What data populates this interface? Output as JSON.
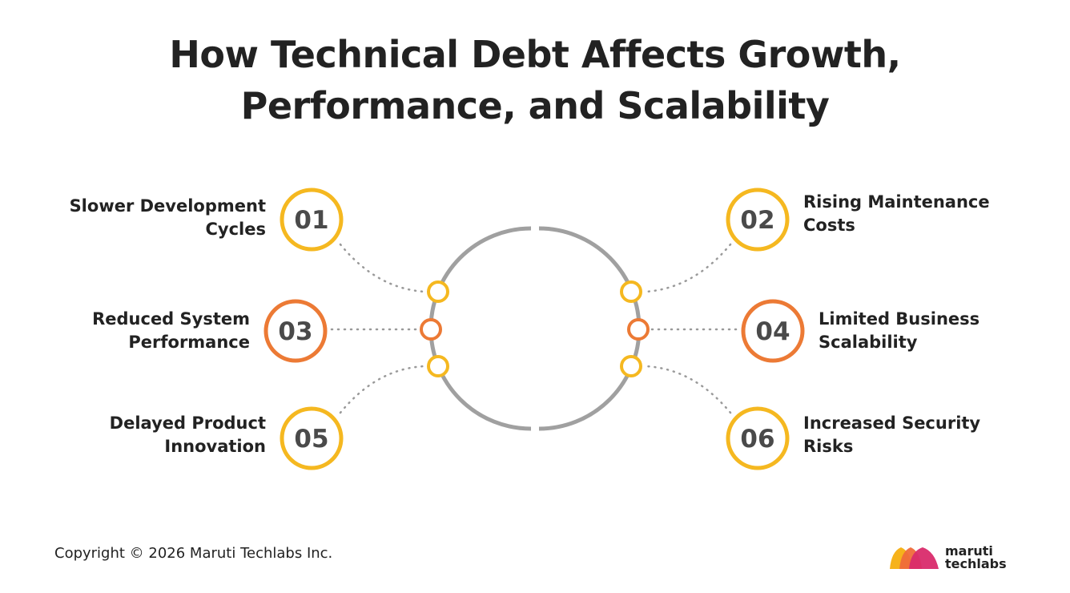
{
  "title": {
    "line1": "How Technical Debt Affects Growth,",
    "line2": "Performance, and Scalability"
  },
  "colors": {
    "yellow": "#F5B820",
    "orange": "#EC7A35",
    "ring": "#A0A0A0",
    "dots": "#9A9A9A",
    "text": "#222222",
    "number": "#4A4A4A"
  },
  "items": [
    {
      "number": "01",
      "line1": "Slower Development",
      "line2": "Cycles",
      "color": "yellow"
    },
    {
      "number": "02",
      "line1": "Rising Maintenance",
      "line2": "Costs",
      "color": "yellow"
    },
    {
      "number": "03",
      "line1": "Reduced System",
      "line2": "Performance",
      "color": "orange"
    },
    {
      "number": "04",
      "line1": "Limited Business",
      "line2": "Scalability",
      "color": "orange"
    },
    {
      "number": "05",
      "line1": "Delayed Product",
      "line2": "Innovation",
      "color": "yellow"
    },
    {
      "number": "06",
      "line1": "Increased Security",
      "line2": "Risks",
      "color": "yellow"
    }
  ],
  "footer": {
    "copyright": "Copyright © 2026 Maruti Techlabs Inc."
  },
  "logo": {
    "line1": "maruti",
    "line2": "techlabs",
    "colors": [
      "#F6B21B",
      "#EF6B3A",
      "#D92B6B"
    ]
  }
}
